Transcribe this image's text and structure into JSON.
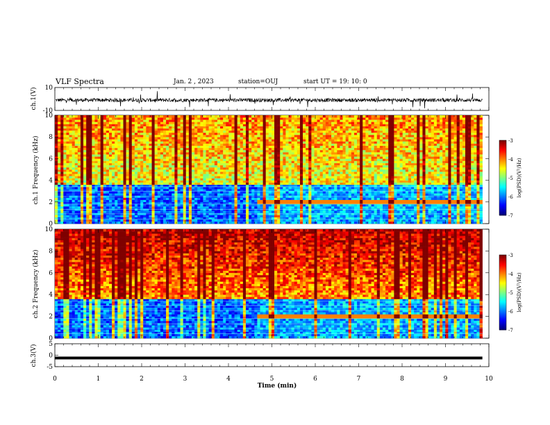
{
  "header": {
    "title": "VLF Spectra",
    "date": "Jan. 2 , 2023",
    "station": "station=OUJ",
    "start": "start UT =   19: 10: 0"
  },
  "chart_data": [
    {
      "type": "line",
      "name": "ch1-waveform",
      "ylabel": "ch.1(V)",
      "ylim": [
        -10,
        10
      ],
      "yticks": [
        "10",
        "-10"
      ],
      "xlim": [
        0,
        10
      ]
    },
    {
      "type": "heatmap",
      "name": "ch1-spectrogram",
      "ylabel": "ch.1  Frequency (kHz)",
      "ylim": [
        0,
        10
      ],
      "yticks": [
        "0",
        "2",
        "4",
        "6",
        "8",
        "10"
      ],
      "xlim": [
        0,
        10
      ],
      "data_end_min": 9.85,
      "transition_min": 4.6,
      "colorbar": {
        "label": "log(PSD)(V²/Hz)",
        "range": [
          -7,
          -3
        ],
        "ticks": [
          "-3",
          "-4",
          "-5",
          "-6",
          "-7"
        ]
      }
    },
    {
      "type": "heatmap",
      "name": "ch2-spectrogram",
      "ylabel": "ch.2  Frequency (kHz)",
      "ylim": [
        0,
        10
      ],
      "yticks": [
        "0",
        "2",
        "4",
        "6",
        "8",
        "10"
      ],
      "xlim": [
        0,
        10
      ],
      "data_end_min": 9.85,
      "transition_min": 4.6,
      "colorbar": {
        "label": "log(PSD)(V²/Hz)",
        "range": [
          -7,
          -3
        ],
        "ticks": [
          "-3",
          "-4",
          "-5",
          "-6",
          "-7"
        ]
      }
    },
    {
      "type": "line",
      "name": "ch3-waveform",
      "ylabel": "ch.3(V)",
      "ylim": [
        -5,
        5
      ],
      "yticks": [
        "5",
        "0",
        "-5"
      ],
      "xlim": [
        0,
        10
      ],
      "approx_constant_value": -1.2
    }
  ],
  "xaxis": {
    "label": "Time (min)",
    "ticks": [
      "0",
      "1",
      "2",
      "3",
      "4",
      "5",
      "6",
      "7",
      "8",
      "9",
      "10"
    ]
  },
  "colormap": [
    "#00007f",
    "#0000ff",
    "#0080ff",
    "#00ffff",
    "#80ff80",
    "#ffff00",
    "#ff8000",
    "#ff0000",
    "#7f0000"
  ]
}
